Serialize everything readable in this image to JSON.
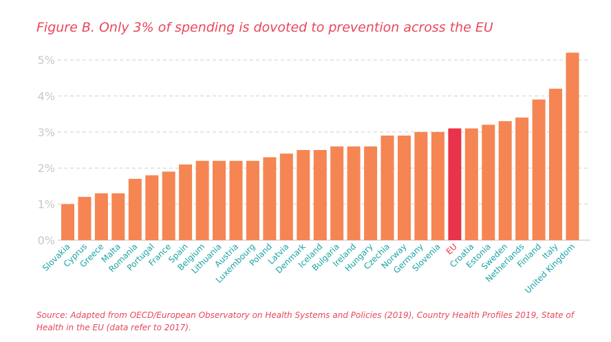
{
  "title": "Figure B. Only 3% of spending is dovoted to prevention across the EU",
  "source": "Source: Adapted from OECD/European Observatory on Health Systems and Policies (2019), Country Health Profiles 2019, State of Health in the EU (data refer to 2017).",
  "colors": {
    "bar": "#f58553",
    "highlight": "#e8334a",
    "label": "#1aa3a3",
    "highlight_label": "#e8334a",
    "grid": "#cfcfcf",
    "title": "#e8475a"
  },
  "chart_data": {
    "type": "bar",
    "title": "Figure B. Only 3% of spending is dovoted to prevention across the EU",
    "xlabel": "",
    "ylabel": "",
    "ylim": [
      0,
      5.3
    ],
    "yticks": [
      0,
      1,
      2,
      3,
      4,
      5
    ],
    "ytick_labels": [
      "0%",
      "1%",
      "2%",
      "3%",
      "4%",
      "5%"
    ],
    "grid": true,
    "highlight_category": "EU",
    "categories": [
      "Slovakia",
      "Cyprus",
      "Greece",
      "Malta",
      "Romania",
      "Portugal",
      "France",
      "Spain",
      "Belgium",
      "Lithuania",
      "Austria",
      "Luxembourg",
      "Poland",
      "Latvia",
      "Denmark",
      "Iceland",
      "Bulgaria",
      "Ireland",
      "Hungary",
      "Czechia",
      "Norway",
      "Germany",
      "Slovenia",
      "EU",
      "Croatia",
      "Estonia",
      "Sweden",
      "Netherlands",
      "Finland",
      "Italy",
      "United Kingdom"
    ],
    "values": [
      1.0,
      1.2,
      1.3,
      1.3,
      1.7,
      1.8,
      1.9,
      2.1,
      2.2,
      2.2,
      2.2,
      2.2,
      2.3,
      2.4,
      2.5,
      2.5,
      2.6,
      2.6,
      2.6,
      2.9,
      2.9,
      3.0,
      3.0,
      3.1,
      3.1,
      3.2,
      3.3,
      3.4,
      3.9,
      4.2,
      5.2
    ]
  }
}
